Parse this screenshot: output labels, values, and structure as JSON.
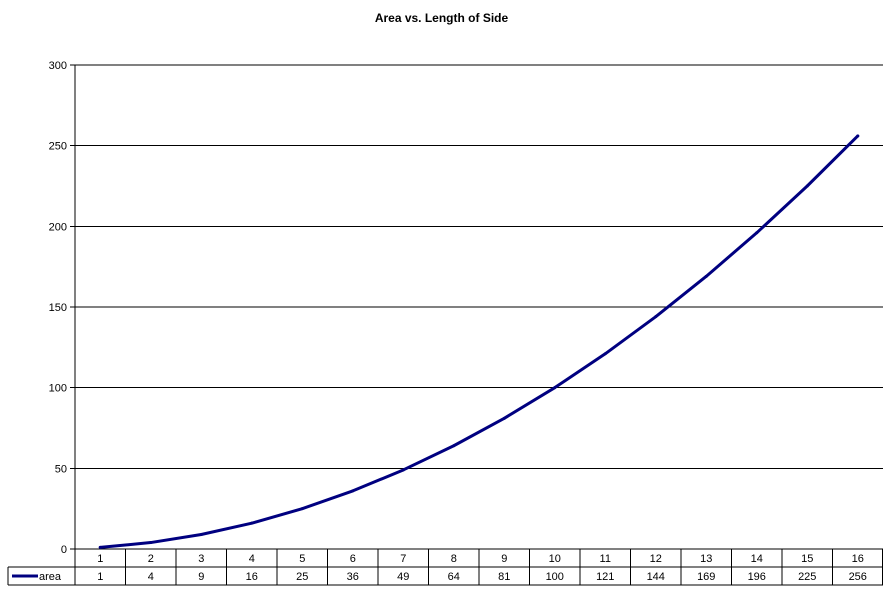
{
  "chart_data": {
    "type": "line",
    "title": "Area vs. Length of Side",
    "xlabel": "",
    "ylabel": "",
    "categories": [
      "1",
      "2",
      "3",
      "4",
      "5",
      "6",
      "7",
      "8",
      "9",
      "10",
      "11",
      "12",
      "13",
      "14",
      "15",
      "16"
    ],
    "series": [
      {
        "name": "area",
        "color": "#000080",
        "values": [
          1,
          4,
          9,
          16,
          25,
          36,
          49,
          64,
          81,
          100,
          121,
          144,
          169,
          196,
          225,
          256
        ]
      }
    ],
    "ylim": [
      0,
      300
    ],
    "yticks": [
      0,
      50,
      100,
      150,
      200,
      250,
      300
    ],
    "grid": "horizontal",
    "legend": "data-table-left",
    "data_table": true
  }
}
